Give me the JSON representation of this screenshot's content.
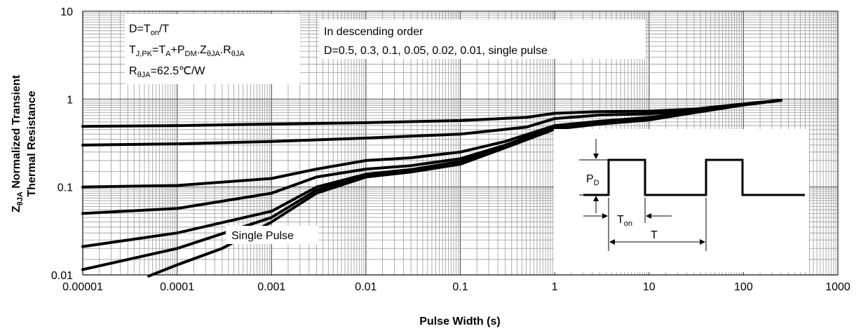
{
  "chart_data": {
    "type": "line",
    "x_scale": "log",
    "y_scale": "log",
    "xlim": [
      1e-05,
      1000
    ],
    "ylim": [
      0.01,
      10
    ],
    "grid": true,
    "xlabel": "Pulse Width (s)",
    "ylabel": {
      "prefix": "Z",
      "sub": "θJA",
      "line1_rest": " Normalized Transient",
      "line2": "Thermal Resistance"
    },
    "x_ticks": [
      "0.00001",
      "0.0001",
      "0.001",
      "0.01",
      "0.1",
      "1",
      "10",
      "100",
      "1000"
    ],
    "y_ticks": [
      "0.01",
      "0.1",
      "1",
      "10"
    ],
    "annotations": {
      "box1": {
        "line1": {
          "a": "D=T",
          "a_sub": "on",
          "b": "/T"
        },
        "line2": {
          "a": "T",
          "a_sub": "J,PK",
          "b": "=T",
          "b_sub": "A",
          "c": "+P",
          "c_sub": "DM",
          "d": ".Z",
          "d_sub": "θJA",
          "e": ".R",
          "e_sub": "θJA"
        },
        "line3": {
          "a": "R",
          "a_sub": "θJA",
          "b": "=62.5℃/W"
        }
      },
      "box2": {
        "line1": "In descending order",
        "line2": "D=0.5, 0.3, 0.1, 0.05, 0.02, 0.01, single pulse"
      },
      "single_pulse_label": "Single Pulse",
      "pulse_diagram": {
        "pd_label": "P",
        "pd_sub": "D",
        "ton_label": "T",
        "ton_sub": "on",
        "t_label": "T"
      }
    },
    "series": [
      {
        "x": [
          1e-05,
          0.0001,
          0.001,
          0.01,
          0.1,
          0.5,
          1,
          3,
          10,
          30,
          100,
          250
        ],
        "y": [
          0.49,
          0.5,
          0.52,
          0.54,
          0.57,
          0.62,
          0.69,
          0.72,
          0.73,
          0.77,
          0.88,
          0.97
        ]
      },
      {
        "x": [
          1e-05,
          0.0001,
          0.001,
          0.01,
          0.1,
          0.5,
          1,
          3,
          10,
          30,
          100,
          250
        ],
        "y": [
          0.3,
          0.31,
          0.33,
          0.36,
          0.4,
          0.48,
          0.6,
          0.66,
          0.68,
          0.74,
          0.86,
          0.97
        ]
      },
      {
        "x": [
          1e-05,
          0.0001,
          0.001,
          0.003,
          0.01,
          0.03,
          0.1,
          0.3,
          1,
          3,
          10,
          30,
          100,
          250
        ],
        "y": [
          0.1,
          0.104,
          0.125,
          0.16,
          0.2,
          0.215,
          0.25,
          0.33,
          0.5,
          0.56,
          0.62,
          0.72,
          0.86,
          0.97
        ]
      },
      {
        "x": [
          1e-05,
          0.0001,
          0.001,
          0.003,
          0.01,
          0.03,
          0.1,
          0.3,
          1,
          3,
          10,
          30,
          100,
          250
        ],
        "y": [
          0.05,
          0.057,
          0.085,
          0.13,
          0.16,
          0.175,
          0.21,
          0.3,
          0.48,
          0.54,
          0.6,
          0.71,
          0.86,
          0.97
        ]
      },
      {
        "x": [
          1e-05,
          0.0001,
          0.001,
          0.003,
          0.01,
          0.03,
          0.1,
          0.3,
          1,
          3,
          10,
          30,
          100,
          250
        ],
        "y": [
          0.021,
          0.03,
          0.053,
          0.1,
          0.14,
          0.158,
          0.195,
          0.29,
          0.47,
          0.53,
          0.59,
          0.7,
          0.86,
          0.97
        ]
      },
      {
        "x": [
          1e-05,
          0.0001,
          0.001,
          0.003,
          0.01,
          0.03,
          0.1,
          0.3,
          1,
          3,
          10,
          30,
          100,
          250
        ],
        "y": [
          0.0115,
          0.02,
          0.045,
          0.092,
          0.135,
          0.152,
          0.188,
          0.285,
          0.46,
          0.525,
          0.585,
          0.7,
          0.86,
          0.97
        ]
      },
      {
        "x": [
          5e-05,
          0.0001,
          0.0003,
          0.001,
          0.003,
          0.01,
          0.03,
          0.1,
          0.3,
          1,
          3,
          10,
          30,
          100,
          250
        ],
        "y": [
          0.0097,
          0.013,
          0.02,
          0.04,
          0.085,
          0.13,
          0.148,
          0.182,
          0.28,
          0.455,
          0.52,
          0.58,
          0.7,
          0.86,
          0.97
        ]
      }
    ]
  }
}
